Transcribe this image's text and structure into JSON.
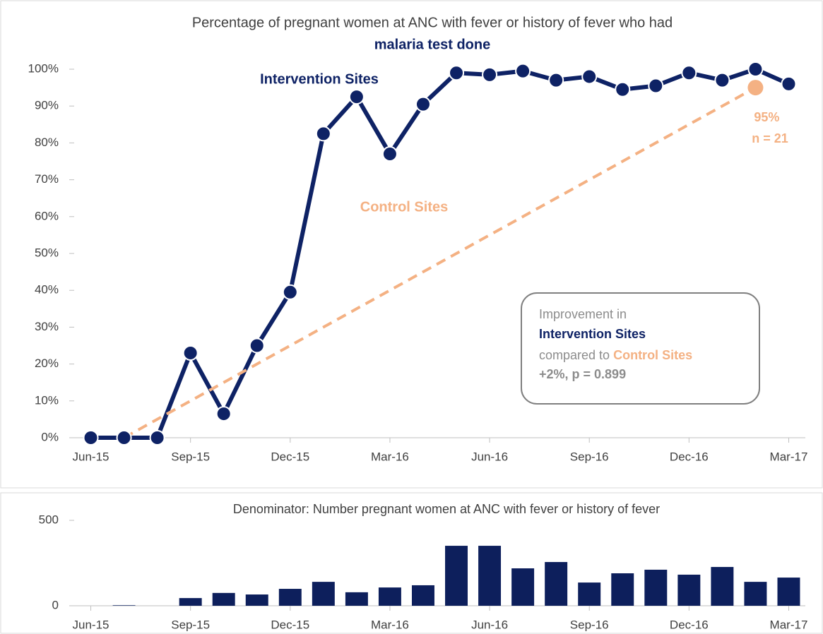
{
  "chart_data": [
    {
      "type": "line",
      "title": "Percentage of pregnant women at ANC with fever or history of fever who had",
      "subtitle": "malaria test done",
      "xlim": [
        -0.5,
        21.5
      ],
      "xticks": [
        {
          "value": 0,
          "label": "Jun-15"
        },
        {
          "value": 3,
          "label": "Sep-15"
        },
        {
          "value": 6,
          "label": "Dec-15"
        },
        {
          "value": 9,
          "label": "Mar-16"
        },
        {
          "value": 12,
          "label": "Jun-16"
        },
        {
          "value": 15,
          "label": "Sep-16"
        },
        {
          "value": 18,
          "label": "Dec-16"
        },
        {
          "value": 21,
          "label": "Mar-17"
        }
      ],
      "ylim": [
        0,
        100
      ],
      "yticks": [
        {
          "value": 0,
          "label": "0%"
        },
        {
          "value": 10,
          "label": "10%"
        },
        {
          "value": 20,
          "label": "20%"
        },
        {
          "value": 30,
          "label": "30%"
        },
        {
          "value": 40,
          "label": "40%"
        },
        {
          "value": 50,
          "label": "50%"
        },
        {
          "value": 60,
          "label": "60%"
        },
        {
          "value": 70,
          "label": "70%"
        },
        {
          "value": 80,
          "label": "80%"
        },
        {
          "value": 90,
          "label": "90%"
        },
        {
          "value": 100,
          "label": "100%"
        }
      ],
      "series": [
        {
          "name": "Intervention Sites",
          "color": "#0e2265",
          "x": [
            0,
            1,
            2,
            3,
            4,
            5,
            6,
            7,
            8,
            9,
            10,
            11,
            12,
            13,
            14,
            15,
            16,
            17,
            18,
            19,
            20,
            21
          ],
          "values": [
            0,
            0,
            0,
            23,
            6.5,
            25,
            39.5,
            82.5,
            92.5,
            77,
            90.5,
            99,
            98.5,
            99.5,
            97,
            98,
            94.5,
            95.5,
            99,
            97,
            100,
            96
          ]
        },
        {
          "name": "Control Sites",
          "color": "#f4b183",
          "dashed": true,
          "x": [
            1,
            20
          ],
          "values": [
            0,
            95
          ],
          "value_labels": [
            null,
            "95%"
          ]
        }
      ],
      "annotations": [
        "n = 21"
      ],
      "box": {
        "line1": "Improvement in",
        "line2": "Intervention Sites",
        "line3": "compared to",
        "line3b": "Control Sites",
        "line4": "+2%, p = 0.899"
      }
    },
    {
      "type": "bar",
      "title": "Denominator: Number pregnant women at ANC with fever or history of fever",
      "color": "#0d1f5c",
      "xlim": [
        -0.5,
        21.5
      ],
      "xticks": [
        {
          "value": 0,
          "label": "Jun-15"
        },
        {
          "value": 3,
          "label": "Sep-15"
        },
        {
          "value": 6,
          "label": "Dec-15"
        },
        {
          "value": 9,
          "label": "Mar-16"
        },
        {
          "value": 12,
          "label": "Jun-16"
        },
        {
          "value": 15,
          "label": "Sep-16"
        },
        {
          "value": 18,
          "label": "Dec-16"
        },
        {
          "value": 21,
          "label": "Mar-17"
        }
      ],
      "ylim": [
        0,
        500
      ],
      "yticks": [
        0,
        500
      ],
      "x": [
        0,
        1,
        2,
        3,
        4,
        5,
        6,
        7,
        8,
        9,
        10,
        11,
        12,
        13,
        14,
        15,
        16,
        17,
        18,
        19,
        20,
        21
      ],
      "values": [
        0,
        3,
        0,
        45,
        75,
        66,
        99,
        140,
        79,
        107,
        120,
        351,
        351,
        219,
        256,
        136,
        190,
        211,
        182,
        227,
        140,
        165
      ]
    }
  ]
}
